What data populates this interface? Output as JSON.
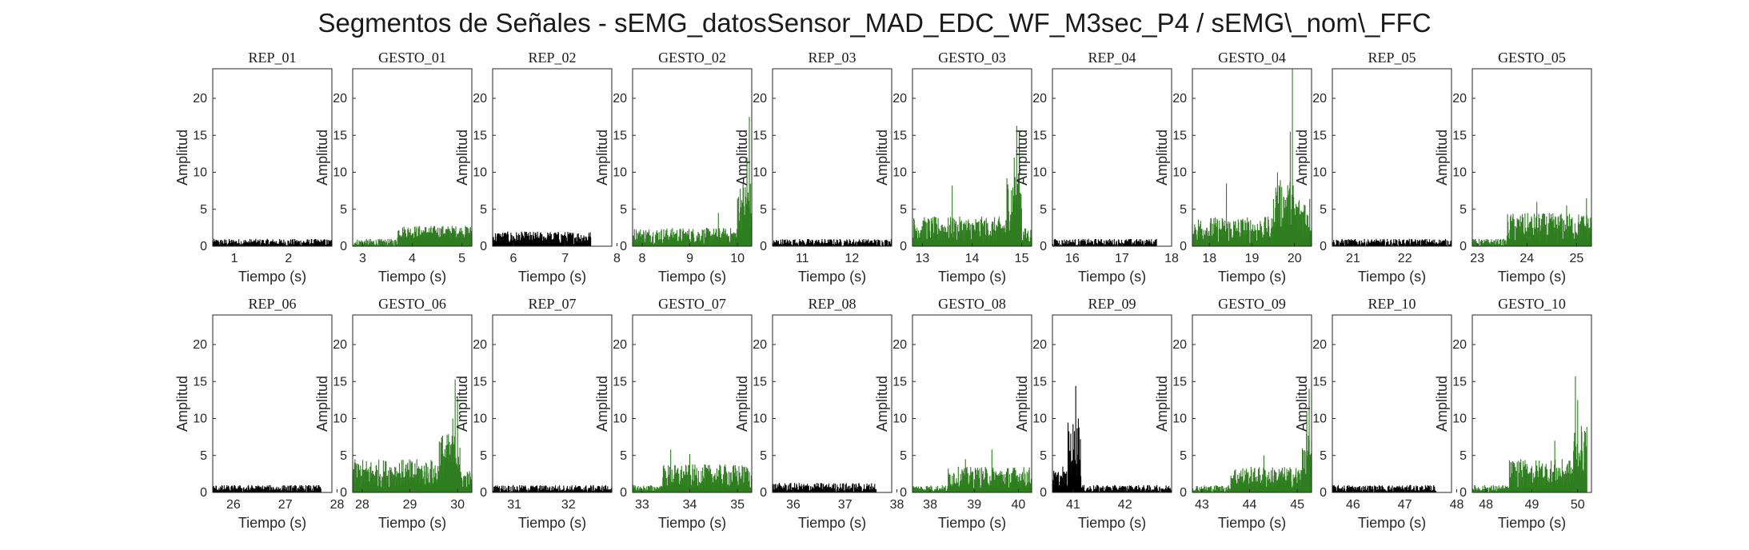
{
  "title": "Segmentos de Señales - sEMG_datosSensor_MAD_EDC_WF_M3sec_P4 / sEMG\\_nom\\_FFC",
  "colors": {
    "gesto": "#2e7d1f",
    "rep": "#000000",
    "axis": "#262626"
  },
  "chart_data": [
    {
      "type": "area",
      "title": "REP_01",
      "xlabel": "Tiempo (s)",
      "ylabel": "Amplitud",
      "xlim": [
        0.6,
        2.8
      ],
      "ylim": [
        0,
        24
      ],
      "xticks": [
        1,
        2
      ],
      "yticks": [
        0,
        5,
        10,
        15,
        20
      ],
      "color": "#000000",
      "segments": [
        [
          0.6,
          2.8,
          0,
          1.0
        ]
      ],
      "spikes": []
    },
    {
      "type": "area",
      "title": "GESTO_01",
      "xlabel": "Tiempo (s)",
      "ylabel": "Amplitud",
      "xlim": [
        2.8,
        5.2
      ],
      "ylim": [
        0,
        24
      ],
      "xticks": [
        3,
        4,
        5
      ],
      "yticks": [
        0,
        5,
        10,
        15,
        20
      ],
      "color": "#2e7d1f",
      "segments": [
        [
          2.8,
          3.7,
          0,
          1.0
        ],
        [
          3.7,
          5.2,
          1.0,
          2.8
        ]
      ],
      "spikes": []
    },
    {
      "type": "area",
      "title": "REP_02",
      "xlabel": "Tiempo (s)",
      "ylabel": "Amplitud",
      "xlim": [
        5.6,
        7.9
      ],
      "ylim": [
        0,
        24
      ],
      "xticks": [
        6,
        7,
        8
      ],
      "yticks": [
        0,
        5,
        10,
        15,
        20
      ],
      "color": "#000000",
      "segments": [
        [
          5.6,
          7.5,
          0.3,
          2.0
        ]
      ],
      "spikes": []
    },
    {
      "type": "area",
      "title": "GESTO_02",
      "xlabel": "Tiempo (s)",
      "ylabel": "Amplitud",
      "xlim": [
        7.8,
        10.3
      ],
      "ylim": [
        0,
        24
      ],
      "xticks": [
        8,
        9,
        10
      ],
      "yticks": [
        0,
        5,
        10,
        15,
        20
      ],
      "color": "#2e7d1f",
      "segments": [
        [
          7.8,
          10.0,
          0.3,
          2.5
        ],
        [
          10.0,
          10.3,
          2.0,
          9.0
        ]
      ],
      "spikes": [
        [
          9.6,
          4.5
        ],
        [
          10.25,
          17.5
        ],
        [
          10.2,
          12.0
        ]
      ]
    },
    {
      "type": "area",
      "title": "REP_03",
      "xlabel": "Tiempo (s)",
      "ylabel": "Amplitud",
      "xlim": [
        10.4,
        12.8
      ],
      "ylim": [
        0,
        24
      ],
      "xticks": [
        11,
        12
      ],
      "yticks": [
        0,
        5,
        10,
        15,
        20
      ],
      "color": "#000000",
      "segments": [
        [
          10.4,
          12.8,
          0,
          1.0
        ]
      ],
      "spikes": []
    },
    {
      "type": "area",
      "title": "GESTO_03",
      "xlabel": "Tiempo (s)",
      "ylabel": "Amplitud",
      "xlim": [
        12.8,
        15.2
      ],
      "ylim": [
        0,
        24
      ],
      "xticks": [
        13,
        14,
        15
      ],
      "yticks": [
        0,
        5,
        10,
        15,
        20
      ],
      "color": "#2e7d1f",
      "segments": [
        [
          12.8,
          14.7,
          0.5,
          4.0
        ],
        [
          14.7,
          15.0,
          2.0,
          10.0
        ],
        [
          15.0,
          15.2,
          0.3,
          2.5
        ]
      ],
      "spikes": [
        [
          13.6,
          8.2
        ],
        [
          14.9,
          16.3
        ],
        [
          14.95,
          15.5
        ],
        [
          14.85,
          12.0
        ]
      ]
    },
    {
      "type": "area",
      "title": "REP_04",
      "xlabel": "Tiempo (s)",
      "ylabel": "Amplitud",
      "xlim": [
        15.6,
        18.0
      ],
      "ylim": [
        0,
        24
      ],
      "xticks": [
        16,
        17,
        18
      ],
      "yticks": [
        0,
        5,
        10,
        15,
        20
      ],
      "color": "#000000",
      "segments": [
        [
          15.6,
          17.7,
          0,
          1.0
        ]
      ],
      "spikes": []
    },
    {
      "type": "area",
      "title": "GESTO_04",
      "xlabel": "Tiempo (s)",
      "ylabel": "Amplitud",
      "xlim": [
        17.6,
        20.4
      ],
      "ylim": [
        0,
        24
      ],
      "xticks": [
        18,
        19,
        20
      ],
      "yticks": [
        0,
        5,
        10,
        15,
        20
      ],
      "color": "#2e7d1f",
      "segments": [
        [
          17.6,
          19.5,
          0.3,
          4.0
        ],
        [
          19.5,
          20.0,
          2.0,
          9.0
        ],
        [
          20.0,
          20.4,
          1.0,
          7.0
        ]
      ],
      "spikes": [
        [
          19.95,
          24.0
        ],
        [
          19.9,
          15.5
        ],
        [
          19.6,
          10.0
        ],
        [
          18.4,
          8.5
        ]
      ]
    },
    {
      "type": "area",
      "title": "REP_05",
      "xlabel": "Tiempo (s)",
      "ylabel": "Amplitud",
      "xlim": [
        20.6,
        22.9
      ],
      "ylim": [
        0,
        24
      ],
      "xticks": [
        21,
        22
      ],
      "yticks": [
        0,
        5,
        10,
        15,
        20
      ],
      "color": "#000000",
      "segments": [
        [
          20.6,
          22.9,
          0,
          1.0
        ]
      ],
      "spikes": []
    },
    {
      "type": "area",
      "title": "GESTO_05",
      "xlabel": "Tiempo (s)",
      "ylabel": "Amplitud",
      "xlim": [
        22.9,
        25.3
      ],
      "ylim": [
        0,
        24
      ],
      "xticks": [
        23,
        24,
        25
      ],
      "yticks": [
        0,
        5,
        10,
        15,
        20
      ],
      "color": "#2e7d1f",
      "segments": [
        [
          22.9,
          23.6,
          0,
          1.0
        ],
        [
          23.6,
          25.3,
          0.5,
          4.5
        ]
      ],
      "spikes": [
        [
          24.2,
          6.0
        ],
        [
          25.2,
          6.5
        ],
        [
          24.8,
          5.5
        ]
      ]
    },
    {
      "type": "area",
      "title": "REP_06",
      "xlabel": "Tiempo (s)",
      "ylabel": "Amplitud",
      "xlim": [
        25.6,
        27.9
      ],
      "ylim": [
        0,
        24
      ],
      "xticks": [
        26,
        27,
        28
      ],
      "yticks": [
        0,
        5,
        10,
        15,
        20
      ],
      "color": "#000000",
      "segments": [
        [
          25.6,
          27.7,
          0,
          1.0
        ]
      ],
      "spikes": []
    },
    {
      "type": "area",
      "title": "GESTO_06",
      "xlabel": "Tiempo (s)",
      "ylabel": "Amplitud",
      "xlim": [
        27.8,
        30.3
      ],
      "ylim": [
        0,
        24
      ],
      "xticks": [
        28,
        29,
        30
      ],
      "yticks": [
        0,
        5,
        10,
        15,
        20
      ],
      "color": "#2e7d1f",
      "segments": [
        [
          27.8,
          29.6,
          0.5,
          4.5
        ],
        [
          29.6,
          30.05,
          2.0,
          8.0
        ],
        [
          30.05,
          30.3,
          0.5,
          3.0
        ]
      ],
      "spikes": [
        [
          29.95,
          15.3
        ],
        [
          30.0,
          13.0
        ],
        [
          29.9,
          10.0
        ]
      ]
    },
    {
      "type": "area",
      "title": "REP_07",
      "xlabel": "Tiempo (s)",
      "ylabel": "Amplitud",
      "xlim": [
        30.6,
        32.8
      ],
      "ylim": [
        0,
        24
      ],
      "xticks": [
        31,
        32
      ],
      "yticks": [
        0,
        5,
        10,
        15,
        20
      ],
      "color": "#000000",
      "segments": [
        [
          30.6,
          32.8,
          0,
          1.0
        ]
      ],
      "spikes": []
    },
    {
      "type": "area",
      "title": "GESTO_07",
      "xlabel": "Tiempo (s)",
      "ylabel": "Amplitud",
      "xlim": [
        32.8,
        35.3
      ],
      "ylim": [
        0,
        24
      ],
      "xticks": [
        33,
        34,
        35
      ],
      "yticks": [
        0,
        5,
        10,
        15,
        20
      ],
      "color": "#2e7d1f",
      "segments": [
        [
          32.8,
          33.4,
          0,
          1.0
        ],
        [
          33.4,
          35.3,
          0.5,
          3.8
        ]
      ],
      "spikes": [
        [
          33.6,
          5.8
        ],
        [
          34.0,
          5.2
        ]
      ]
    },
    {
      "type": "area",
      "title": "REP_08",
      "xlabel": "Tiempo (s)",
      "ylabel": "Amplitud",
      "xlim": [
        35.6,
        37.9
      ],
      "ylim": [
        0,
        24
      ],
      "xticks": [
        36,
        37,
        38
      ],
      "yticks": [
        0,
        5,
        10,
        15,
        20
      ],
      "color": "#000000",
      "segments": [
        [
          35.6,
          37.6,
          0,
          1.3
        ]
      ],
      "spikes": []
    },
    {
      "type": "area",
      "title": "GESTO_08",
      "xlabel": "Tiempo (s)",
      "ylabel": "Amplitud",
      "xlim": [
        37.6,
        40.3
      ],
      "ylim": [
        0,
        24
      ],
      "xticks": [
        38,
        39,
        40
      ],
      "yticks": [
        0,
        5,
        10,
        15,
        20
      ],
      "color": "#2e7d1f",
      "segments": [
        [
          37.6,
          38.4,
          0,
          1.0
        ],
        [
          38.4,
          40.3,
          0.5,
          3.5
        ]
      ],
      "spikes": [
        [
          39.4,
          5.8
        ],
        [
          38.8,
          4.5
        ]
      ]
    },
    {
      "type": "area",
      "title": "REP_09",
      "xlabel": "Tiempo (s)",
      "ylabel": "Amplitud",
      "xlim": [
        40.6,
        42.9
      ],
      "ylim": [
        0,
        24
      ],
      "xticks": [
        41,
        42
      ],
      "yticks": [
        0,
        5,
        10,
        15,
        20
      ],
      "color": "#000000",
      "segments": [
        [
          40.6,
          40.9,
          0.5,
          3.0
        ],
        [
          40.9,
          41.15,
          2.0,
          9.5
        ],
        [
          41.15,
          42.9,
          0,
          1.0
        ]
      ],
      "spikes": [
        [
          41.05,
          14.4
        ],
        [
          41.1,
          10.0
        ],
        [
          40.8,
          3.5
        ]
      ]
    },
    {
      "type": "area",
      "title": "GESTO_09",
      "xlabel": "Tiempo (s)",
      "ylabel": "Amplitud",
      "xlim": [
        42.8,
        45.3
      ],
      "ylim": [
        0,
        24
      ],
      "xticks": [
        43,
        44,
        45
      ],
      "yticks": [
        0,
        5,
        10,
        15,
        20
      ],
      "color": "#2e7d1f",
      "segments": [
        [
          42.8,
          43.6,
          0,
          1.0
        ],
        [
          43.6,
          45.1,
          0.5,
          3.5
        ],
        [
          45.1,
          45.3,
          2.0,
          8.0
        ]
      ],
      "spikes": [
        [
          45.25,
          14.0
        ],
        [
          45.2,
          11.0
        ],
        [
          44.3,
          5.0
        ]
      ]
    },
    {
      "type": "area",
      "title": "REP_10",
      "xlabel": "Tiempo (s)",
      "ylabel": "Amplitud",
      "xlim": [
        45.6,
        47.9
      ],
      "ylim": [
        0,
        24
      ],
      "xticks": [
        46,
        47,
        48
      ],
      "yticks": [
        0,
        5,
        10,
        15,
        20
      ],
      "color": "#000000",
      "segments": [
        [
          45.6,
          47.6,
          0,
          1.0
        ]
      ],
      "spikes": []
    },
    {
      "type": "area",
      "title": "GESTO_10",
      "xlabel": "Tiempo (s)",
      "ylabel": "Amplitud",
      "xlim": [
        47.7,
        50.3
      ],
      "ylim": [
        0,
        24
      ],
      "xticks": [
        48,
        49,
        50
      ],
      "yticks": [
        0,
        5,
        10,
        15,
        20
      ],
      "color": "#2e7d1f",
      "segments": [
        [
          47.7,
          48.5,
          0,
          1.0
        ],
        [
          48.5,
          49.9,
          0.5,
          4.5
        ],
        [
          49.9,
          50.2,
          2.0,
          9.0
        ]
      ],
      "spikes": [
        [
          49.95,
          15.7
        ],
        [
          50.0,
          12.5
        ],
        [
          49.5,
          7.0
        ]
      ]
    }
  ]
}
